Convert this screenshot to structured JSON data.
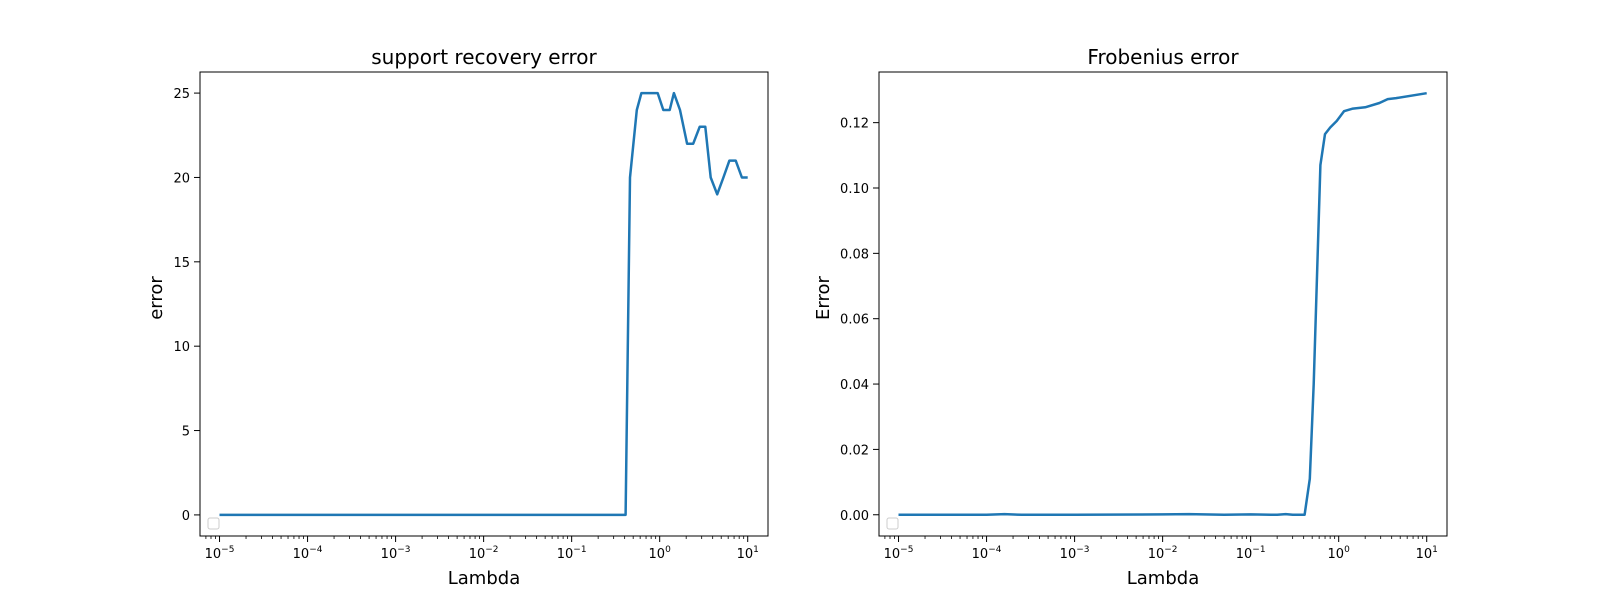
{
  "chart_data": [
    {
      "type": "line",
      "title": "support recovery error",
      "xlabel": "Lambda",
      "ylabel": "error",
      "xscale": "log",
      "xlim": [
        6e-06,
        17
      ],
      "ylim": [
        -1.25,
        26.25
      ],
      "grid": false,
      "legend": "lower-left (empty)",
      "x_ticks": [
        "10^-5",
        "10^-4",
        "10^-3",
        "10^-2",
        "10^-1",
        "10^0",
        "10^1"
      ],
      "y_ticks": [
        0,
        5,
        10,
        15,
        20,
        25
      ],
      "y_tick_labels": [
        "0",
        "5",
        "10",
        "15",
        "20",
        "25"
      ],
      "series": [
        {
          "color": "#1f77b4",
          "x": [
            1e-05,
            0.01,
            0.41,
            0.46,
            0.55,
            0.62,
            0.72,
            0.85,
            0.95,
            1.1,
            1.3,
            1.45,
            1.7,
            2.05,
            2.4,
            2.85,
            3.3,
            3.8,
            4.5,
            5.3,
            6.2,
            7.3,
            8.6,
            10
          ],
          "y": [
            0,
            0,
            0,
            20,
            24,
            25,
            25,
            25,
            25,
            24,
            24,
            25,
            24,
            22,
            22,
            23,
            23,
            20,
            19,
            20,
            21,
            21,
            20,
            20
          ]
        }
      ]
    },
    {
      "type": "line",
      "title": "Frobenius error",
      "xlabel": "Lambda",
      "ylabel": "Error",
      "xscale": "log",
      "xlim": [
        6e-06,
        17
      ],
      "ylim": [
        -0.0065,
        0.1355
      ],
      "grid": false,
      "legend": "lower-left (empty)",
      "x_ticks": [
        "10^-5",
        "10^-4",
        "10^-3",
        "10^-2",
        "10^-1",
        "10^0",
        "10^1"
      ],
      "y_ticks": [
        0,
        0.02,
        0.04,
        0.06,
        0.08,
        0.1,
        0.12
      ],
      "y_tick_labels": [
        "0.00",
        "0.02",
        "0.04",
        "0.06",
        "0.08",
        "0.10",
        "0.12"
      ],
      "series": [
        {
          "color": "#1f77b4",
          "x": [
            1e-05,
            0.0001,
            0.00016,
            0.00025,
            0.001,
            0.01,
            0.02,
            0.05,
            0.1,
            0.2,
            0.25,
            0.3,
            0.41,
            0.47,
            0.52,
            0.57,
            0.62,
            0.7,
            0.8,
            0.95,
            1.15,
            1.45,
            2.0,
            2.9,
            3.6,
            4.5,
            10
          ],
          "y": [
            0,
            0,
            0.0002,
            0,
            0,
            0.0001,
            0.0002,
            0,
            0.0001,
            0,
            0.0002,
            0,
            0,
            0.011,
            0.04,
            0.075,
            0.107,
            0.1165,
            0.1185,
            0.1205,
            0.1235,
            0.1243,
            0.1247,
            0.126,
            0.1272,
            0.1275,
            0.129
          ]
        }
      ]
    }
  ]
}
